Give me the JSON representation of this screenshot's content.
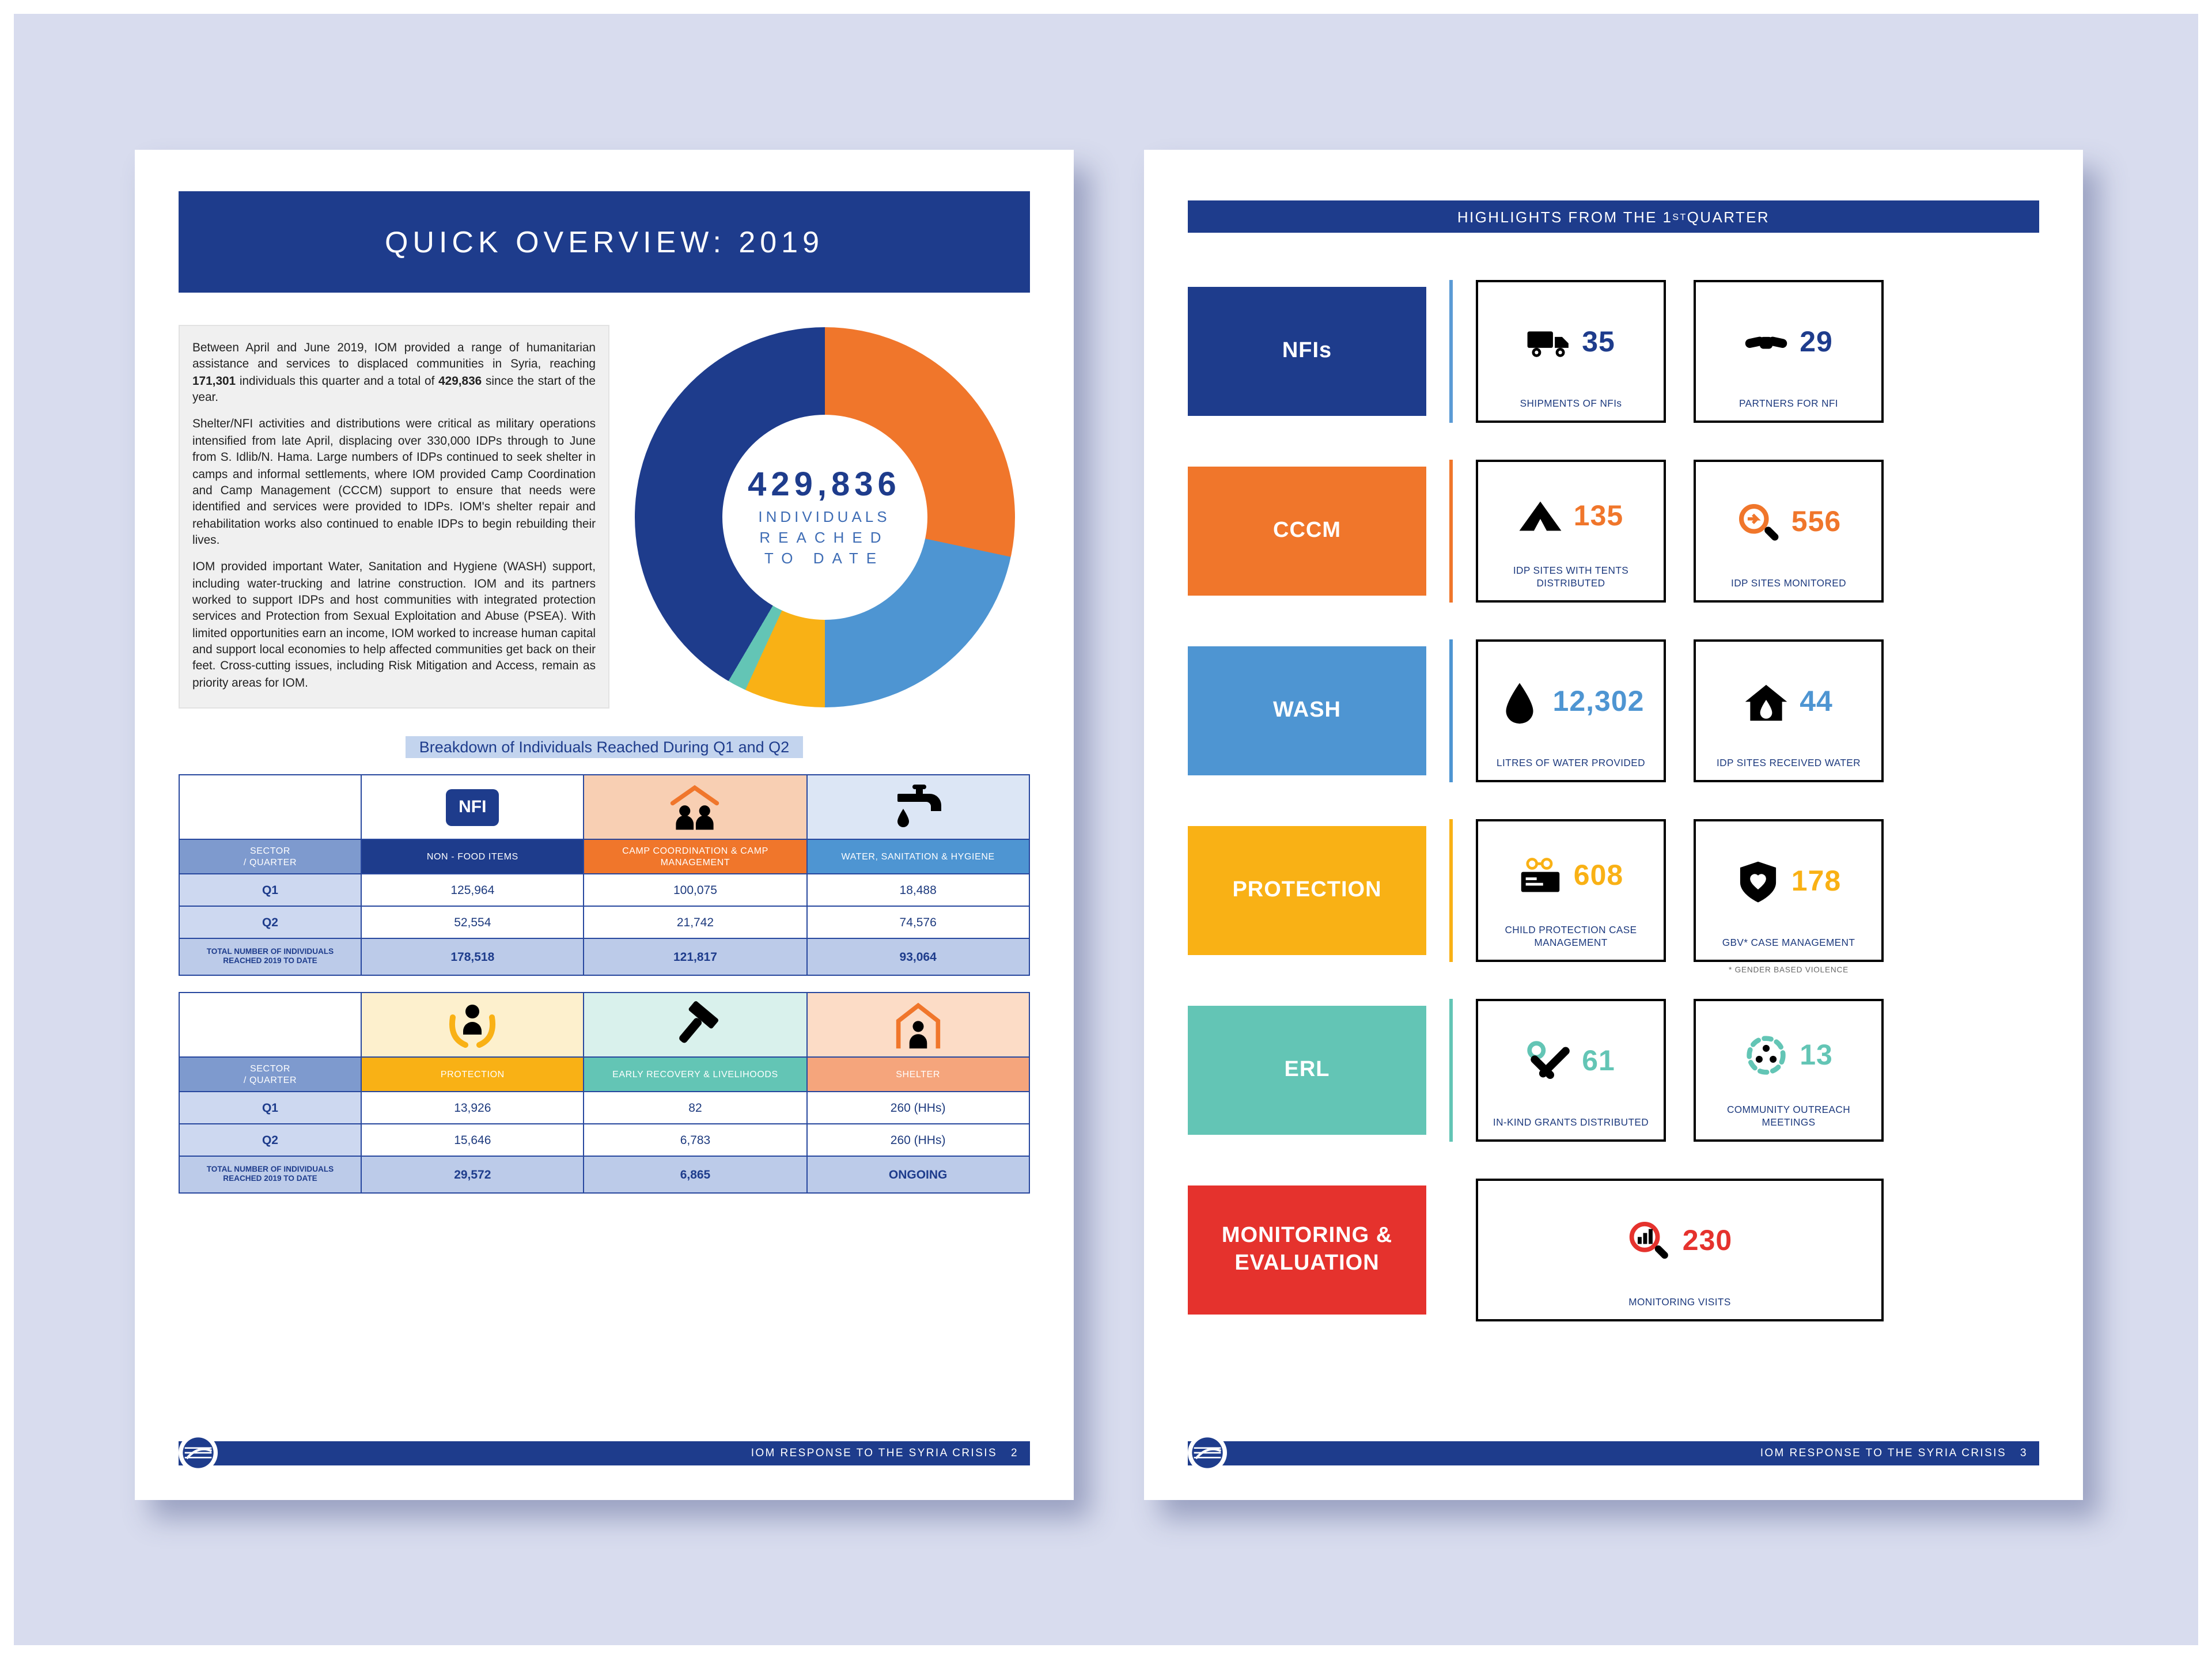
{
  "colors": {
    "navy": "#1e3c8c",
    "orange": "#f0762b",
    "blue": "#4e95d2",
    "yellow": "#f9b115",
    "teal": "#63c5b5",
    "red": "#e5322d",
    "salmon": "#f5a57c",
    "background": "#d8dcee"
  },
  "left_page": {
    "title": "QUICK OVERVIEW: 2019",
    "intro": {
      "p1": [
        {
          "t": "Between April and June 2019, IOM provided a range of humanitarian assistance and services to displaced communities in Syria, reaching "
        },
        {
          "t": "171,301",
          "b": true
        },
        {
          "t": " individuals this quarter and a total of "
        },
        {
          "t": "429,836",
          "b": true
        },
        {
          "t": " since the start of the year."
        }
      ],
      "p2": "Shelter/NFI activities and distributions were critical as military operations intensified from late April, displacing over 330,000 IDPs through to June from S. Idlib/N. Hama. Large numbers of IDPs continued to seek shelter in camps and informal settlements, where IOM provided Camp Coordination and Camp Management (CCCM) support to ensure that needs were identified and services were provided to IDPs. IOM's shelter repair and rehabilitation works also continued to enable IDPs to begin rebuilding their lives.",
      "p3": "IOM provided important Water, Sanitation and Hygiene (WASH) support, including water-trucking and latrine construction. IOM and its partners worked to support IDPs and host communities with integrated protection services and Protection from Sexual Exploitation and Abuse (PSEA). With limited opportunities earn an income, IOM worked to increase human capital and support local economies to help affected communities get back on their feet. Cross-cutting issues, including Risk Mitigation and Access, remain as priority areas for IOM."
    },
    "donut": {
      "value": "429,836",
      "line1": "INDIVIDUALS",
      "line2": "REACHED",
      "line3": "TO DATE"
    },
    "breakdown_title": "Breakdown of Individuals Reached During Q1 and Q2",
    "table1": {
      "badge": "NFI",
      "corner": [
        "SECTOR",
        "/ QUARTER"
      ],
      "col_headers": [
        "NON - FOOD ITEMS",
        "CAMP COORDINATION & CAMP MANAGEMENT",
        "WATER, SANITATION & HYGIENE"
      ],
      "rows": [
        {
          "label": "Q1",
          "values": [
            "125,964",
            "100,075",
            "18,488"
          ]
        },
        {
          "label": "Q2",
          "values": [
            "52,554",
            "21,742",
            "74,576"
          ]
        },
        {
          "label": "TOTAL NUMBER OF INDIVIDUALS REACHED 2019 TO DATE",
          "values": [
            "178,518",
            "121,817",
            "93,064"
          ]
        }
      ]
    },
    "table2": {
      "corner": [
        "SECTOR",
        "/ QUARTER"
      ],
      "col_headers": [
        "PROTECTION",
        "EARLY RECOVERY & LIVELIHOODS",
        "SHELTER"
      ],
      "rows": [
        {
          "label": "Q1",
          "values": [
            "13,926",
            "82",
            "260 (HHs)"
          ]
        },
        {
          "label": "Q2",
          "values": [
            "15,646",
            "6,783",
            "260 (HHs)"
          ]
        },
        {
          "label": "TOTAL NUMBER OF INDIVIDUALS REACHED 2019 TO DATE",
          "values": [
            "29,572",
            "6,865",
            "ONGOING"
          ]
        }
      ]
    },
    "footer": {
      "text": "IOM RESPONSE TO THE SYRIA CRISIS",
      "page": "2"
    }
  },
  "right_page": {
    "header": [
      {
        "t": "HIGHLIGHTS FROM THE 1"
      },
      {
        "t": "ST",
        "sup": true
      },
      {
        "t": " QUARTER"
      }
    ],
    "rows": [
      {
        "sector": "NFIs",
        "color": "#1e3c8c",
        "cards": [
          {
            "value": "35",
            "caption": "SHIPMENTS OF NFIs",
            "icon": "truck-icon"
          },
          {
            "value": "29",
            "caption": "PARTNERS FOR NFI",
            "icon": "handshake-icon"
          }
        ]
      },
      {
        "sector": "CCCM",
        "color": "#f0762b",
        "cards": [
          {
            "value": "135",
            "caption": "IDP SITES WITH TENTS DISTRIBUTED",
            "icon": "tent-icon"
          },
          {
            "value": "556",
            "caption": "IDP SITES MONITORED",
            "icon": "magnifier-arrow-icon"
          }
        ]
      },
      {
        "sector": "WASH",
        "color": "#4e95d2",
        "cards": [
          {
            "value": "12,302",
            "caption": "LITRES OF WATER PROVIDED",
            "icon": "water-drop-icon"
          },
          {
            "value": "44",
            "caption": "IDP SITES RECEIVED WATER",
            "icon": "house-drop-icon"
          }
        ]
      },
      {
        "sector": "PROTECTION",
        "color": "#f9b115",
        "cards": [
          {
            "value": "608",
            "caption": "CHILD PROTECTION CASE MANAGEMENT",
            "icon": "id-card-icon"
          },
          {
            "value": "178",
            "caption": "GBV* CASE MANAGEMENT",
            "icon": "shield-heart-icon"
          }
        ]
      },
      {
        "sector": "ERL",
        "color": "#63c5b5",
        "cards": [
          {
            "value": "61",
            "caption": "IN-KIND GRANTS DISTRIBUTED",
            "icon": "tools-icon"
          },
          {
            "value": "13",
            "caption": "COMMUNITY OUTREACH MEETINGS",
            "icon": "community-icon"
          }
        ]
      },
      {
        "sector": "MONITORING & EVALUATION",
        "color": "#e5322d",
        "cards": [
          {
            "value": "230",
            "caption": "MONITORING VISITS",
            "icon": "monitoring-magnifier-icon"
          }
        ]
      }
    ],
    "footnote": "* GENDER BASED VIOLENCE",
    "footer": {
      "text": "IOM RESPONSE TO THE SYRIA CRISIS",
      "page": "3"
    }
  },
  "chart_data": {
    "type": "pie",
    "subtype": "donut",
    "title": "429,836 INDIVIDUALS REACHED TO DATE",
    "categories": [
      "Non-Food Items",
      "Camp Coordination & Camp Management",
      "Water, Sanitation & Hygiene",
      "Protection",
      "Early Recovery & Livelihoods"
    ],
    "values": [
      178518,
      121817,
      93064,
      29572,
      6865
    ],
    "colors": [
      "#1e3c8c",
      "#f0762b",
      "#4e95d2",
      "#f9b115",
      "#63c5b5"
    ],
    "total": 429836,
    "legend": "none",
    "center_label": "429,836 INDIVIDUALS REACHED TO DATE"
  }
}
